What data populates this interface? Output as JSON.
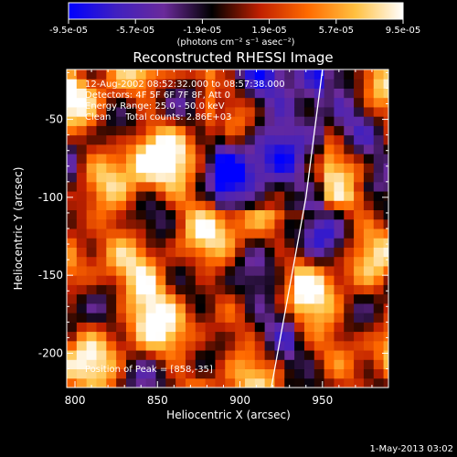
{
  "colorbar": {
    "ticks": [
      "-9.5e-05",
      "-5.7e-05",
      "-1.9e-05",
      "1.9e-05",
      "5.7e-05",
      "9.5e-05"
    ],
    "units": "(photons cm⁻² s⁻¹ asec⁻²)"
  },
  "chart_data": {
    "type": "heatmap",
    "title": "Reconstructed RHESSI Image",
    "xlabel": "Heliocentric X (arcsec)",
    "ylabel": "Heliocentric Y (arcsec)",
    "xlim": [
      795,
      990
    ],
    "ylim": [
      -222,
      -18
    ],
    "x_ticks": [
      800,
      850,
      900,
      950
    ],
    "y_ticks": [
      -50,
      -100,
      -150,
      -200
    ],
    "colorscale": [
      "#0000ff",
      "#4020c0",
      "#6a2a9a",
      "#000000",
      "#c02000",
      "#ff6a00",
      "#ffc040",
      "#ffffff"
    ],
    "limb_line": [
      [
        919,
        -222
      ],
      [
        940,
        -100
      ],
      [
        950,
        -18
      ]
    ],
    "annotations": [
      "12-Aug-2002 08:52:32.000 to 08:57:38.000",
      "Detectors: 4F 5F 6F 7F 8F, Att 0",
      "Energy Range: 25.0 - 50.0 keV",
      "Clean     Total counts: 2.86E+03",
      "Position of Peak = [858,-35]"
    ]
  },
  "footer": {
    "timestamp": "1-May-2013 03:02"
  }
}
